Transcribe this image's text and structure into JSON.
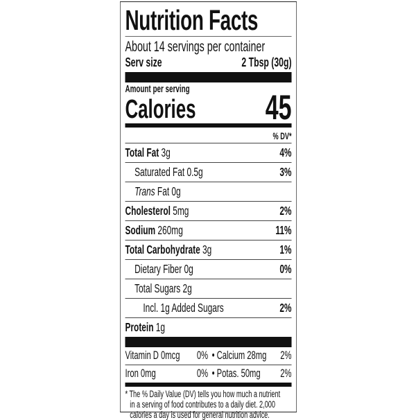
{
  "title": "Nutrition Facts",
  "servings": "About 14 servings per container",
  "serv_size_label": "Serv size",
  "serv_size_value": "2 Tbsp (30g)",
  "amount_per_serving": "Amount per serving",
  "calories_label": "Calories",
  "calories_value": "45",
  "dv_header": "% DV*",
  "nutrients": [
    {
      "name": "Total Fat",
      "amount": "3g",
      "dv": "4%"
    },
    {
      "name": "Saturated Fat",
      "amount": "0.5g",
      "dv": "3%"
    },
    {
      "name": "Trans",
      "amount": "Fat 0g",
      "dv": ""
    },
    {
      "name": "Cholesterol",
      "amount": "5mg",
      "dv": "2%"
    },
    {
      "name": "Sodium",
      "amount": "260mg",
      "dv": "11%"
    },
    {
      "name": "Total Carbohydrate",
      "amount": "3g",
      "dv": "1%"
    },
    {
      "name": "Dietary Fiber",
      "amount": "0g",
      "dv": "0%"
    },
    {
      "name": "Total Sugars",
      "amount": "2g",
      "dv": ""
    },
    {
      "name": "Incl. 1g Added Sugars",
      "amount": "",
      "dv": "2%"
    },
    {
      "name": "Protein",
      "amount": "1g",
      "dv": ""
    }
  ],
  "vitamins": [
    {
      "a": "Vitamin D 0mcg",
      "a_dv": "0%",
      "b": "Calcium 28mg",
      "b_dv": "2%"
    },
    {
      "a": "Iron 0mg",
      "a_dv": "0%",
      "b": "Potas. 50mg",
      "b_dv": "2%"
    }
  ],
  "bullet": "•",
  "footnote_star": "*",
  "footnote": "The % Daily Value (DV) tells you how much a nutrient",
  "footnote_2": "in a serving of food contributes to a daily diet. 2,000",
  "footnote_3": "calories a day is used for general nutrition advice."
}
